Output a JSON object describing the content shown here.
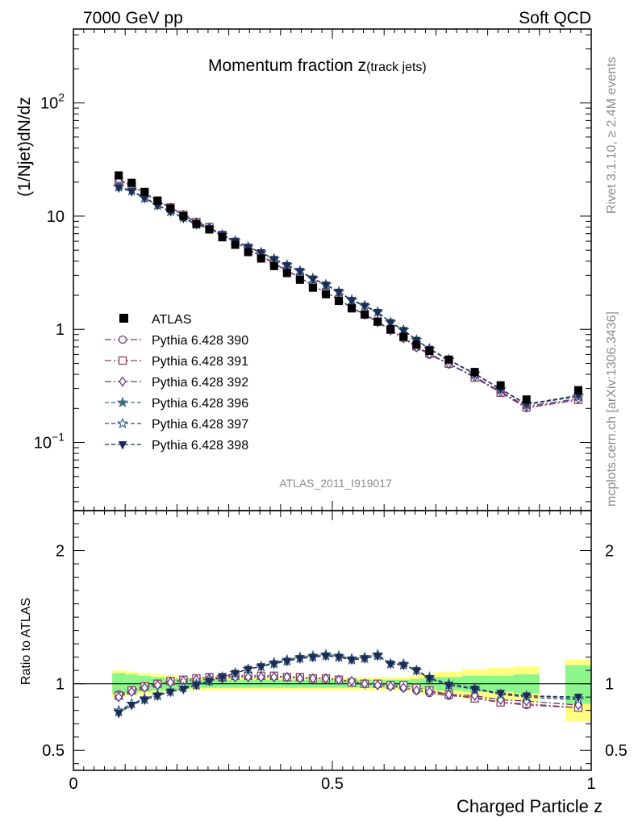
{
  "header": {
    "left": "7000 GeV pp",
    "right": "Soft QCD"
  },
  "side_text": {
    "rivet": "Rivet 3.1.10, ≥ 2.4M events",
    "mcplots": "mcplots.cern.ch [arXiv:1306.3436]"
  },
  "analysis_id": "ATLAS_2011_I919017",
  "chart_data": {
    "type": "line",
    "title_main": "Momentum fraction z",
    "title_sub": "(track jets)",
    "ylabel": "(1/Njet)dN/dz",
    "ylabel_ratio": "Ratio to ATLAS",
    "xlabel": "Charged Particle z",
    "xlim": [
      0,
      1
    ],
    "ylim": [
      0.025,
      450
    ],
    "ylim_ratio": [
      0.35,
      2.3
    ],
    "yscale": "log",
    "x_ticks": [
      "0",
      "0.5",
      "1"
    ],
    "y_ticks": [
      "10^-1",
      "1",
      "10",
      "10^2"
    ],
    "ratio_ticks": [
      "0.5",
      "1",
      "2"
    ],
    "legend_position": "middle-left",
    "x": [
      0.0875,
      0.1125,
      0.1375,
      0.1625,
      0.1875,
      0.2125,
      0.2375,
      0.2625,
      0.2875,
      0.3125,
      0.3375,
      0.3625,
      0.3875,
      0.4125,
      0.4375,
      0.4625,
      0.4875,
      0.5125,
      0.5375,
      0.5625,
      0.5875,
      0.6125,
      0.6375,
      0.6625,
      0.6875,
      0.725,
      0.775,
      0.825,
      0.875,
      0.975
    ],
    "atlas": [
      22.9,
      19.7,
      16.4,
      13.7,
      11.7,
      10.0,
      8.53,
      7.62,
      6.5,
      5.58,
      4.81,
      4.22,
      3.62,
      3.14,
      2.74,
      2.33,
      2.04,
      1.78,
      1.53,
      1.35,
      1.17,
      1.0,
      0.86,
      0.73,
      0.643,
      0.54,
      0.42,
      0.32,
      0.24,
      0.29
    ],
    "band_stat": [
      [
        0.92,
        1.08
      ],
      [
        0.93,
        1.07
      ],
      [
        0.94,
        1.06
      ],
      [
        0.95,
        1.05
      ],
      [
        0.96,
        1.04
      ],
      [
        0.96,
        1.04
      ],
      [
        0.97,
        1.03
      ],
      [
        0.97,
        1.03
      ],
      [
        0.97,
        1.03
      ],
      [
        0.97,
        1.03
      ],
      [
        0.97,
        1.03
      ],
      [
        0.97,
        1.03
      ],
      [
        0.97,
        1.03
      ],
      [
        0.97,
        1.03
      ],
      [
        0.97,
        1.03
      ],
      [
        0.97,
        1.03
      ],
      [
        0.97,
        1.03
      ],
      [
        0.97,
        1.03
      ],
      [
        0.97,
        1.03
      ],
      [
        0.97,
        1.03
      ],
      [
        0.97,
        1.03
      ],
      [
        0.97,
        1.03
      ],
      [
        0.97,
        1.03
      ],
      [
        0.965,
        1.035
      ],
      [
        0.96,
        1.04
      ],
      [
        0.95,
        1.05
      ],
      [
        0.94,
        1.06
      ],
      [
        0.94,
        1.06
      ],
      [
        0.93,
        1.07
      ],
      [
        0.85,
        1.14
      ]
    ],
    "band_syst": [
      [
        0.9,
        1.1
      ],
      [
        0.91,
        1.09
      ],
      [
        0.92,
        1.08
      ],
      [
        0.93,
        1.07
      ],
      [
        0.94,
        1.06
      ],
      [
        0.95,
        1.05
      ],
      [
        0.95,
        1.05
      ],
      [
        0.95,
        1.05
      ],
      [
        0.95,
        1.05
      ],
      [
        0.95,
        1.05
      ],
      [
        0.95,
        1.05
      ],
      [
        0.95,
        1.05
      ],
      [
        0.95,
        1.05
      ],
      [
        0.95,
        1.05
      ],
      [
        0.95,
        1.05
      ],
      [
        0.95,
        1.05
      ],
      [
        0.95,
        1.05
      ],
      [
        0.95,
        1.05
      ],
      [
        0.95,
        1.05
      ],
      [
        0.95,
        1.05
      ],
      [
        0.95,
        1.05
      ],
      [
        0.95,
        1.05
      ],
      [
        0.95,
        1.05
      ],
      [
        0.94,
        1.06
      ],
      [
        0.93,
        1.07
      ],
      [
        0.91,
        1.09
      ],
      [
        0.89,
        1.11
      ],
      [
        0.88,
        1.12
      ],
      [
        0.87,
        1.13
      ],
      [
        0.72,
        1.18
      ]
    ],
    "series": [
      {
        "name": "Pythia 6.428 390",
        "color": "#7b3f7a",
        "dash": "8,3,2,3",
        "marker": "circle-open",
        "ratio": [
          0.92,
          0.95,
          0.98,
          1.0,
          1.02,
          1.03,
          1.04,
          1.05,
          1.05,
          1.06,
          1.06,
          1.06,
          1.06,
          1.05,
          1.05,
          1.04,
          1.04,
          1.03,
          1.01,
          1.0,
          1.0,
          0.99,
          0.97,
          0.95,
          0.93,
          0.91,
          0.9,
          0.86,
          0.84,
          0.82
        ]
      },
      {
        "name": "Pythia 6.428 391",
        "color": "#8a3f55",
        "dash": "8,3,2,3",
        "marker": "square-open",
        "ratio": [
          0.91,
          0.95,
          0.98,
          1.0,
          1.02,
          1.03,
          1.04,
          1.05,
          1.05,
          1.06,
          1.06,
          1.06,
          1.06,
          1.05,
          1.05,
          1.04,
          1.04,
          1.03,
          1.01,
          1.0,
          1.0,
          0.99,
          0.99,
          0.97,
          0.95,
          0.92,
          0.89,
          0.86,
          0.85,
          0.82
        ]
      },
      {
        "name": "Pythia 6.428 392",
        "color": "#5a3d8e",
        "dash": "8,3,2,3",
        "marker": "diamond-open",
        "ratio": [
          0.9,
          0.94,
          0.97,
          0.99,
          1.01,
          1.02,
          1.03,
          1.04,
          1.04,
          1.05,
          1.05,
          1.05,
          1.05,
          1.05,
          1.04,
          1.04,
          1.04,
          1.03,
          1.02,
          1.0,
          0.99,
          0.98,
          0.97,
          0.95,
          0.94,
          0.92,
          0.91,
          0.88,
          0.87,
          0.84
        ]
      },
      {
        "name": "Pythia 6.428 396",
        "color": "#3f6e7f",
        "dash": "5,3",
        "marker": "star-filled",
        "ratio": [
          0.8,
          0.85,
          0.89,
          0.92,
          0.94,
          0.97,
          1.0,
          1.02,
          1.05,
          1.08,
          1.11,
          1.13,
          1.16,
          1.18,
          1.2,
          1.21,
          1.22,
          1.21,
          1.19,
          1.2,
          1.22,
          1.15,
          1.15,
          1.1,
          1.05,
          1.0,
          0.97,
          0.92,
          0.91,
          0.89
        ]
      },
      {
        "name": "Pythia 6.428 397",
        "color": "#2d4f7a",
        "dash": "5,3",
        "marker": "star-open",
        "ratio": [
          0.79,
          0.85,
          0.88,
          0.91,
          0.94,
          0.97,
          0.99,
          1.02,
          1.05,
          1.08,
          1.11,
          1.13,
          1.15,
          1.17,
          1.19,
          1.2,
          1.21,
          1.2,
          1.18,
          1.19,
          1.21,
          1.15,
          1.14,
          1.1,
          1.04,
          0.99,
          0.96,
          0.92,
          0.9,
          0.88
        ]
      },
      {
        "name": "Pythia 6.428 398",
        "color": "#1c2d55",
        "dash": "5,3",
        "marker": "triangle-down-filled",
        "ratio": [
          0.78,
          0.84,
          0.88,
          0.91,
          0.94,
          0.96,
          0.99,
          1.02,
          1.05,
          1.08,
          1.11,
          1.13,
          1.15,
          1.17,
          1.19,
          1.2,
          1.21,
          1.2,
          1.18,
          1.19,
          1.21,
          1.15,
          1.14,
          1.1,
          1.04,
          0.99,
          0.96,
          0.93,
          0.91,
          0.9
        ]
      }
    ]
  }
}
